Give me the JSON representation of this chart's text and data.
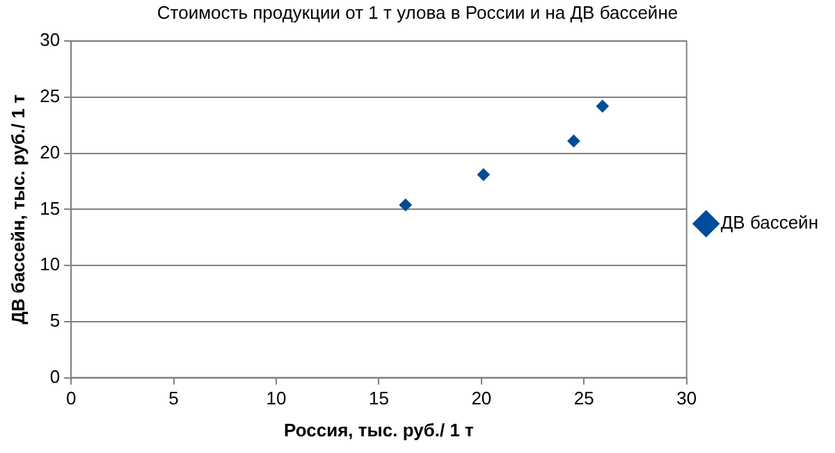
{
  "chart_data": {
    "type": "scatter",
    "title": "Стоимость продукции от 1 т улова в России и на ДВ бассейне",
    "xlabel": "Россия, тыс. руб./ 1 т",
    "ylabel": "ДВ бассейн, тыс. руб./ 1 т",
    "x": [
      16.3,
      20.1,
      24.5,
      25.9
    ],
    "series": [
      {
        "name": "ДВ бассейн",
        "color": "#004c99",
        "values": [
          15.4,
          18.1,
          21.1,
          24.2
        ]
      }
    ],
    "xlim": [
      0,
      30
    ],
    "xticks": [
      0,
      5,
      10,
      15,
      20,
      25,
      30
    ],
    "ylim": [
      0,
      30
    ],
    "yticks": [
      0,
      5,
      10,
      15,
      20,
      25,
      30
    ],
    "grid": "y",
    "legend": "right",
    "marker": "diamond"
  }
}
